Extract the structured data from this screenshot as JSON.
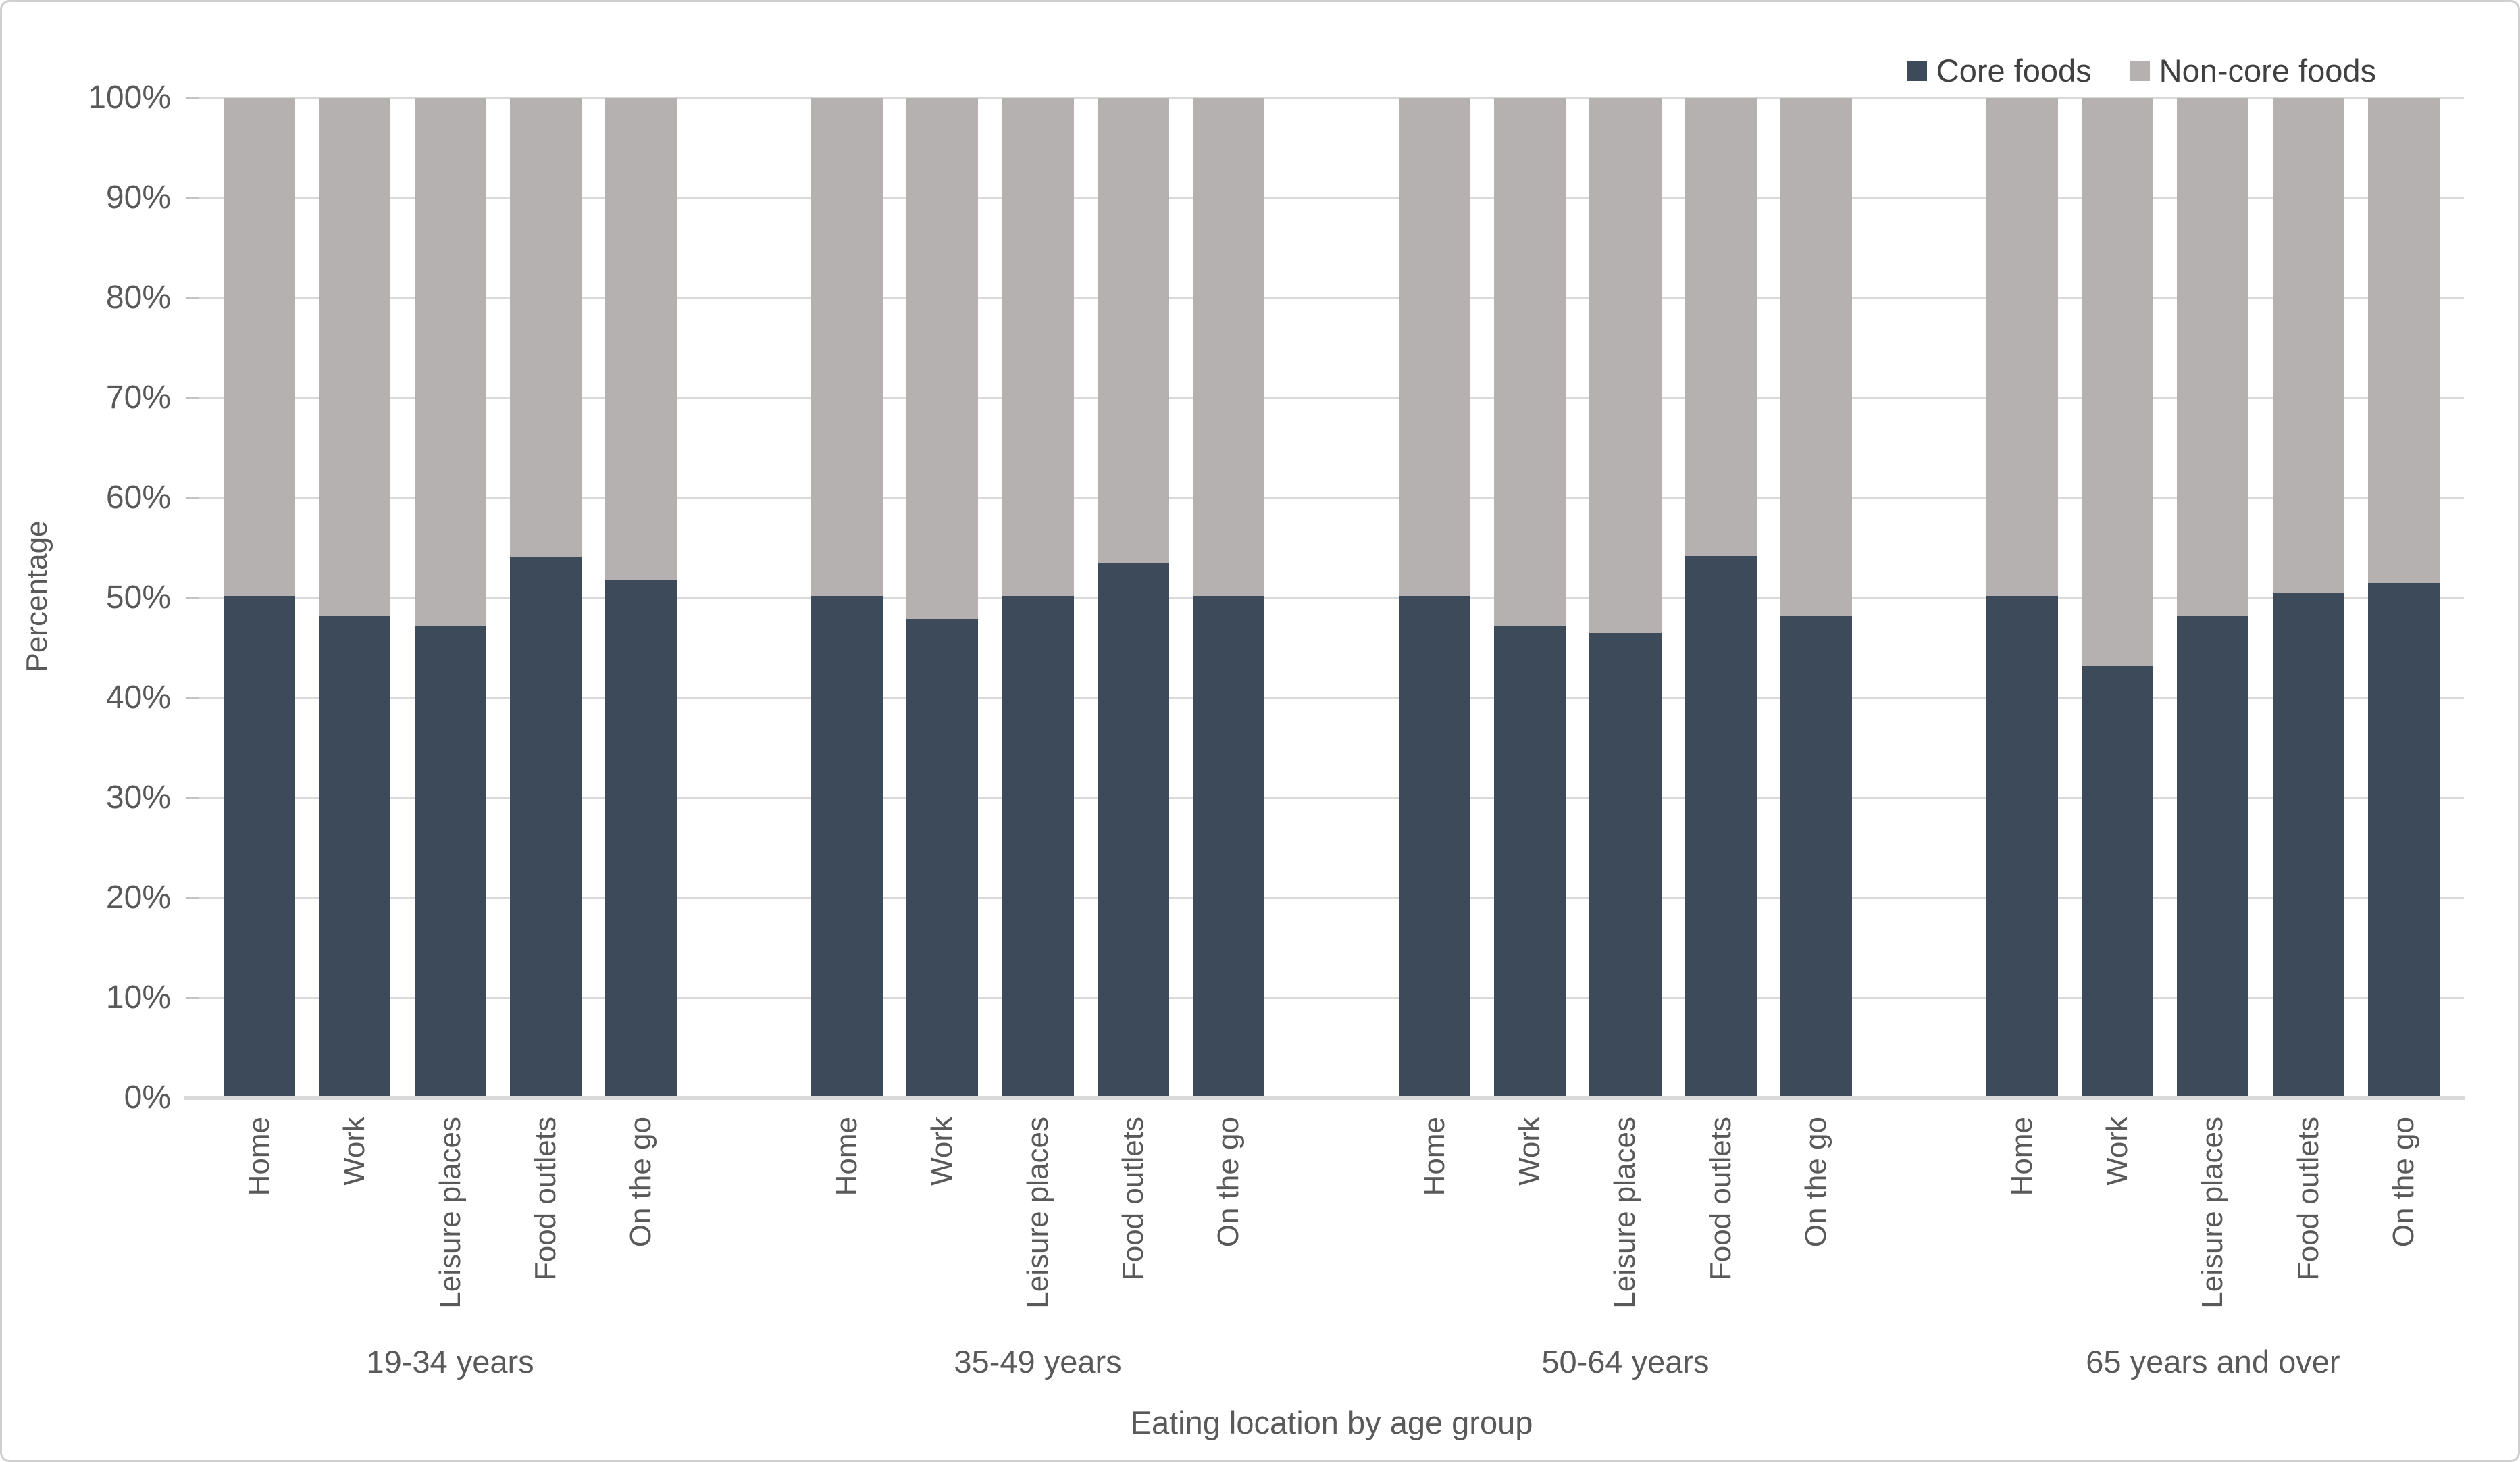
{
  "legend": {
    "items": [
      {
        "label": "Core foods",
        "color": "#3c4a5a"
      },
      {
        "label": "Non-core foods",
        "color": "#b5b1b1"
      }
    ]
  },
  "y_axis": {
    "title": "Percentage",
    "ticks": [
      "0%",
      "10%",
      "20%",
      "30%",
      "40%",
      "50%",
      "60%",
      "70%",
      "80%",
      "90%",
      "100%"
    ]
  },
  "x_axis": {
    "title": "Eating location by age group"
  },
  "colors": {
    "core_foods": "#3c4a5a",
    "non_core_foods": "#b5b1b1",
    "gridline": "#d9d9d9",
    "axis_text": "#595959",
    "legend_text": "#404040"
  },
  "chart_data": {
    "type": "bar",
    "subtype": "100-percent-stacked-column",
    "grid": "horizontal",
    "legend_position": "top-right",
    "ylim": [
      0,
      100
    ],
    "ylabel": "Percentage",
    "xlabel": "Eating location by age group",
    "categories": [
      "Home",
      "Work",
      "Leisure places",
      "Food outlets",
      "On the go"
    ],
    "group_labels": [
      "19-34 years",
      "35-49 years",
      "50-64 years",
      "65 years and over"
    ],
    "series": [
      {
        "name": "Core foods",
        "color": "#3c4a5a",
        "values_by_group": [
          [
            50.2,
            48.2,
            47.2,
            54.1,
            51.8
          ],
          [
            50.2,
            47.9,
            50.2,
            53.5,
            50.2
          ],
          [
            50.2,
            47.2,
            46.5,
            54.2,
            48.2
          ],
          [
            50.2,
            43.2,
            48.2,
            50.5,
            51.5
          ]
        ]
      },
      {
        "name": "Non-core foods",
        "color": "#b5b1b1",
        "values_by_group": [
          [
            49.8,
            51.8,
            52.8,
            45.9,
            48.2
          ],
          [
            49.8,
            52.1,
            49.8,
            46.5,
            49.8
          ],
          [
            49.8,
            52.8,
            53.5,
            45.8,
            51.8
          ],
          [
            49.8,
            56.8,
            51.8,
            49.5,
            48.5
          ]
        ]
      }
    ]
  }
}
